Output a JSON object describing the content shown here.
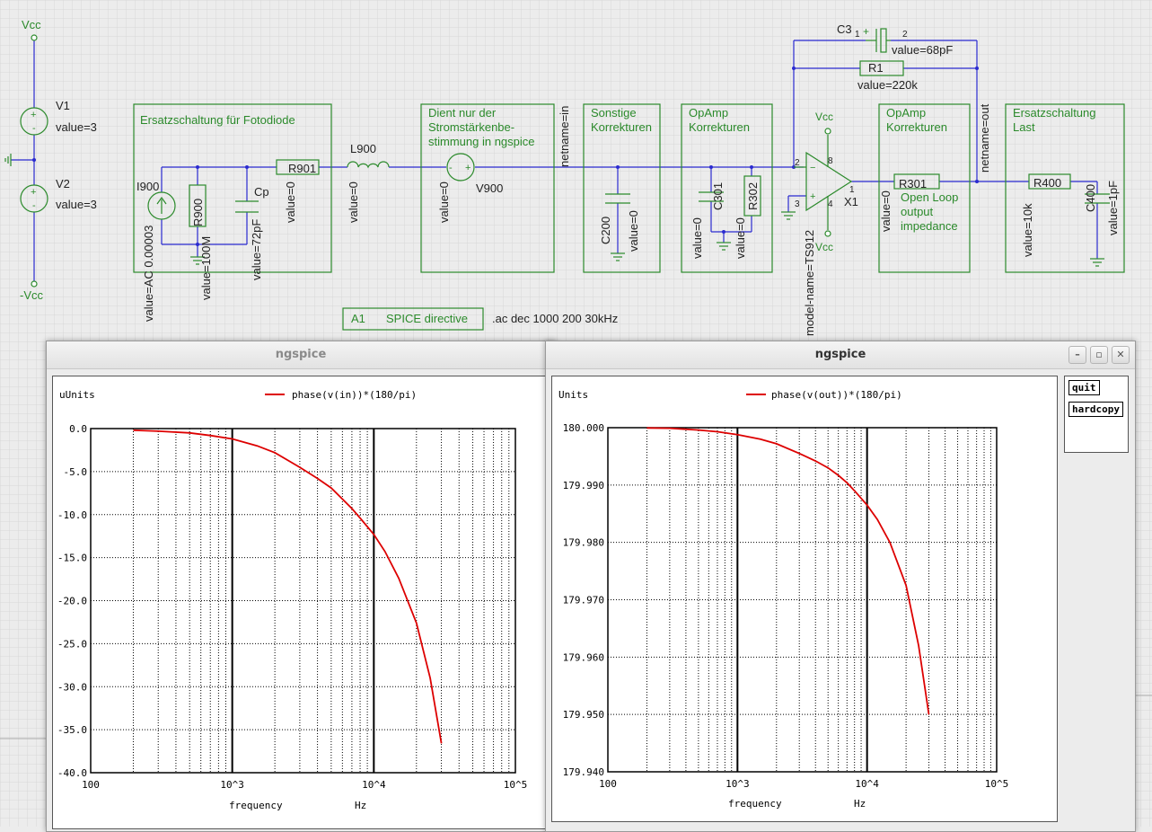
{
  "colors": {
    "wire": "#2a2ad0",
    "comp": "#2b8a2b",
    "plot_line": "#dd0000"
  },
  "schematic": {
    "supply": {
      "vcc_top": "Vcc",
      "vcc_bottom": "-Vcc",
      "v1": "V1",
      "v1_val": "value=3",
      "v2": "V2",
      "v2_val": "value=3"
    },
    "frames": {
      "fotodiode": "Ersatzschaltung für Fotodiode",
      "dient_1": "Dient nur der",
      "dient_2": "Stromstärkenbe-",
      "dient_3": "stimmung in ngspice",
      "sonstige_1": "Sonstige",
      "sonstige_2": "Korrekturen",
      "opamp1_1": "OpAmp",
      "opamp1_2": "Korrekturen",
      "opamp2_1": "OpAmp",
      "opamp2_2": "Korrekturen",
      "last_1": "Ersatzschaltung",
      "last_2": "Last"
    },
    "components": {
      "i900": "I900",
      "i900_val": "value=AC 0.00003",
      "r900": "R900",
      "r900_val": "value=100M",
      "cp": "Cp",
      "cp_val": "value=72pF",
      "r901": "R901",
      "r901_val": "value=0",
      "l900": "L900",
      "l900_val": "value=0",
      "v900": "V900",
      "v900_val": "value=0",
      "netname_in": "netname=in",
      "c200": "C200",
      "c200_val": "value=0",
      "c301": "C301",
      "c301_val": "value=0",
      "r302": "R302",
      "r302_val": "value=0",
      "c3": "C3",
      "c3_val": "value=68pF",
      "c3_pin1": "1",
      "c3_pin2": "2",
      "r1": "R1",
      "r1_val": "value=220k",
      "vcc_op_top": "Vcc",
      "vcc_op_bottom": "Vcc",
      "pin_2": "2",
      "pin_3": "3",
      "pin_8": "8",
      "pin_4": "4",
      "pin_1": "1",
      "x1": "X1",
      "x1_model": "model-name=TS912",
      "r301": "R301",
      "r301_val": "value=0",
      "olo_1": "Open Loop",
      "olo_2": "output",
      "olo_3": "impedance",
      "netname_out": "netname=out",
      "r400": "R400",
      "r400_val": "value=10k",
      "c400": "C400",
      "c400_val": "value=1pF",
      "spice_id": "A1",
      "spice_label": "SPICE directive",
      "spice_cmd": ".ac dec 1000 200 30kHz"
    }
  },
  "windows": [
    {
      "title": "ngspice",
      "ylabel": "uUnits",
      "legend": "phase(v(in))*(180/pi)",
      "xlabel": "frequency",
      "xunit": "Hz",
      "yticks": [
        "0.0",
        "-5.0",
        "-10.0",
        "-15.0",
        "-20.0",
        "-25.0",
        "-30.0",
        "-35.0",
        "-40.0"
      ],
      "xticks": [
        "100",
        "10^3",
        "10^4",
        "10^5"
      ]
    },
    {
      "title": "ngspice",
      "ylabel": "Units",
      "legend": "phase(v(out))*(180/pi)",
      "xlabel": "frequency",
      "xunit": "Hz",
      "yticks": [
        "180.000",
        "179.990",
        "179.980",
        "179.970",
        "179.960",
        "179.950",
        "179.940"
      ],
      "xticks": [
        "100",
        "10^3",
        "10^4",
        "10^5"
      ],
      "buttons": {
        "quit": "quit",
        "hardcopy": "hardcopy"
      }
    }
  ],
  "chart_data": [
    {
      "type": "line",
      "title": "",
      "xlabel": "frequency",
      "xunit": "Hz",
      "ylabel": "uUnits",
      "xscale": "log",
      "xlim": [
        100,
        100000
      ],
      "ylim": [
        -40,
        0
      ],
      "grid": true,
      "legend": "top-center",
      "series": [
        {
          "name": "phase(v(in))*(180/pi)",
          "color": "#dd0000",
          "x": [
            200,
            300,
            500,
            700,
            1000,
            1500,
            2000,
            3000,
            4000,
            5000,
            6000,
            7000,
            8000,
            10000,
            12000,
            15000,
            20000,
            25000,
            30000
          ],
          "y": [
            -0.2,
            -0.3,
            -0.5,
            -0.8,
            -1.2,
            -2.0,
            -2.8,
            -4.5,
            -5.8,
            -6.9,
            -8.2,
            -9.3,
            -10.4,
            -12.3,
            -14.3,
            -17.4,
            -22.6,
            -29.0,
            -36.6
          ]
        }
      ]
    },
    {
      "type": "line",
      "title": "",
      "xlabel": "frequency",
      "xunit": "Hz",
      "ylabel": "Units",
      "xscale": "log",
      "xlim": [
        100,
        100000
      ],
      "ylim": [
        179.94,
        180.0
      ],
      "grid": true,
      "legend": "top-center",
      "series": [
        {
          "name": "phase(v(out))*(180/pi)",
          "color": "#dd0000",
          "x": [
            200,
            300,
            500,
            700,
            1000,
            1500,
            2000,
            3000,
            4000,
            5000,
            6000,
            7000,
            8000,
            10000,
            12000,
            15000,
            20000,
            25000,
            30000
          ],
          "y": [
            179.99995,
            179.9999,
            179.9996,
            179.9993,
            179.9988,
            179.998,
            179.9972,
            179.9955,
            179.9942,
            179.993,
            179.9917,
            179.9904,
            179.989,
            179.9865,
            179.984,
            179.98,
            179.9725,
            179.962,
            179.95
          ]
        }
      ]
    }
  ]
}
